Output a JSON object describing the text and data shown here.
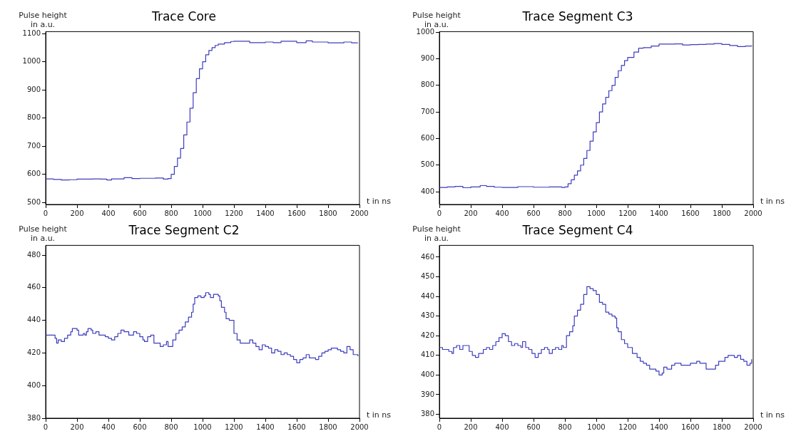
{
  "chart_data": [
    {
      "type": "step",
      "title": "Trace Core",
      "xlabel": "t in ns",
      "ylabel": "Pulse height in a.u.",
      "color": "#3c3cbe",
      "grid": false,
      "xlim": [
        0,
        2000
      ],
      "ylim": [
        493,
        1107
      ],
      "xticks": [
        0,
        200,
        400,
        600,
        800,
        1000,
        1200,
        1400,
        1600,
        1800,
        2000
      ],
      "yticks": [
        500,
        600,
        700,
        800,
        900,
        1000,
        1100
      ],
      "x": [
        0,
        50,
        100,
        150,
        200,
        300,
        350,
        390,
        420,
        500,
        550,
        600,
        700,
        750,
        780,
        800,
        820,
        840,
        860,
        880,
        900,
        920,
        940,
        960,
        980,
        1000,
        1020,
        1040,
        1060,
        1080,
        1100,
        1140,
        1180,
        1200,
        1300,
        1400,
        1450,
        1500,
        1600,
        1660,
        1700,
        1800,
        1900,
        1950,
        1990
      ],
      "values": [
        584,
        582,
        580,
        581,
        583,
        584,
        583,
        580,
        584,
        588,
        585,
        586,
        587,
        583,
        585,
        600,
        628,
        658,
        692,
        740,
        786,
        835,
        890,
        940,
        975,
        1000,
        1025,
        1040,
        1050,
        1058,
        1063,
        1068,
        1072,
        1073,
        1068,
        1070,
        1068,
        1073,
        1068,
        1074,
        1070,
        1067,
        1070,
        1067,
        1067
      ]
    },
    {
      "type": "step",
      "title": "Trace Segment C3",
      "xlabel": "t in ns",
      "ylabel": "Pulse height in a.u.",
      "color": "#3c3cbe",
      "grid": false,
      "xlim": [
        0,
        2000
      ],
      "ylim": [
        352,
        1002
      ],
      "xticks": [
        0,
        200,
        400,
        600,
        800,
        1000,
        1200,
        1400,
        1600,
        1800,
        2000
      ],
      "yticks": [
        400,
        500,
        600,
        700,
        800,
        900,
        1000
      ],
      "x": [
        0,
        50,
        100,
        150,
        200,
        260,
        300,
        350,
        400,
        500,
        600,
        700,
        780,
        800,
        820,
        840,
        860,
        880,
        900,
        920,
        940,
        960,
        980,
        1000,
        1020,
        1040,
        1060,
        1080,
        1100,
        1120,
        1140,
        1160,
        1180,
        1200,
        1240,
        1270,
        1300,
        1350,
        1400,
        1500,
        1550,
        1600,
        1650,
        1700,
        1750,
        1800,
        1850,
        1900,
        1950,
        1990
      ],
      "values": [
        416,
        418,
        420,
        415,
        418,
        423,
        420,
        417,
        416,
        419,
        417,
        418,
        416,
        418,
        430,
        445,
        462,
        478,
        500,
        525,
        555,
        590,
        625,
        660,
        700,
        730,
        755,
        780,
        800,
        830,
        855,
        875,
        893,
        905,
        925,
        940,
        942,
        948,
        955,
        956,
        952,
        953,
        954,
        955,
        957,
        954,
        950,
        946,
        948,
        950
      ]
    },
    {
      "type": "step",
      "title": "Trace Segment C2",
      "xlabel": "t in ns",
      "ylabel": "Pulse height in a.u.",
      "color": "#3c3cbe",
      "grid": false,
      "xlim": [
        0,
        2000
      ],
      "ylim": [
        380,
        486
      ],
      "xticks": [
        0,
        200,
        400,
        600,
        800,
        1000,
        1200,
        1400,
        1600,
        1800,
        2000
      ],
      "yticks": [
        380,
        400,
        420,
        440,
        460,
        480
      ],
      "x": [
        0,
        60,
        70,
        80,
        100,
        120,
        140,
        160,
        170,
        200,
        210,
        240,
        250,
        260,
        270,
        290,
        300,
        320,
        340,
        380,
        400,
        420,
        440,
        460,
        480,
        500,
        530,
        560,
        580,
        600,
        620,
        630,
        650,
        670,
        690,
        720,
        730,
        750,
        770,
        780,
        810,
        830,
        850,
        870,
        890,
        910,
        930,
        940,
        950,
        970,
        990,
        1010,
        1020,
        1040,
        1050,
        1070,
        1100,
        1110,
        1120,
        1140,
        1150,
        1170,
        1200,
        1220,
        1240,
        1280,
        1300,
        1320,
        1340,
        1360,
        1380,
        1400,
        1420,
        1440,
        1460,
        1480,
        1500,
        1520,
        1540,
        1560,
        1580,
        1600,
        1620,
        1640,
        1660,
        1680,
        1720,
        1740,
        1760,
        1780,
        1800,
        1820,
        1860,
        1880,
        1900,
        1920,
        1940,
        1960,
        1990
      ],
      "values": [
        431,
        429,
        426,
        428,
        427,
        429,
        431,
        433,
        435,
        434,
        431,
        432,
        431,
        433,
        435,
        434,
        432,
        433,
        431,
        430,
        429,
        428,
        430,
        432,
        434,
        433,
        431,
        433,
        432,
        430,
        428,
        427,
        430,
        431,
        426,
        426,
        424,
        425,
        427,
        424,
        428,
        432,
        434,
        436,
        439,
        442,
        445,
        450,
        454,
        455,
        454,
        455,
        457,
        456,
        454,
        456,
        455,
        452,
        448,
        445,
        441,
        440,
        432,
        428,
        426,
        426,
        428,
        426,
        424,
        422,
        425,
        424,
        423,
        420,
        422,
        421,
        419,
        420,
        419,
        418,
        416,
        414,
        416,
        417,
        419,
        417,
        416,
        418,
        420,
        421,
        422,
        423,
        422,
        421,
        420,
        424,
        422,
        419,
        418
      ]
    },
    {
      "type": "step",
      "title": "Trace Segment C4",
      "xlabel": "t in ns",
      "ylabel": "Pulse height in a.u.",
      "color": "#3c3cbe",
      "grid": false,
      "xlim": [
        0,
        2000
      ],
      "ylim": [
        378,
        466
      ],
      "xticks": [
        0,
        200,
        400,
        600,
        800,
        1000,
        1200,
        1400,
        1600,
        1800,
        2000
      ],
      "yticks": [
        380,
        390,
        400,
        410,
        420,
        430,
        440,
        450,
        460
      ],
      "x": [
        0,
        20,
        60,
        80,
        90,
        110,
        130,
        150,
        180,
        190,
        210,
        230,
        250,
        280,
        300,
        320,
        340,
        360,
        380,
        400,
        420,
        440,
        460,
        480,
        500,
        520,
        530,
        550,
        570,
        590,
        610,
        630,
        650,
        670,
        690,
        700,
        720,
        740,
        760,
        780,
        790,
        810,
        830,
        850,
        860,
        880,
        900,
        920,
        940,
        960,
        980,
        1000,
        1020,
        1040,
        1060,
        1080,
        1100,
        1120,
        1130,
        1140,
        1160,
        1180,
        1200,
        1230,
        1260,
        1280,
        1300,
        1320,
        1340,
        1380,
        1400,
        1420,
        1430,
        1450,
        1480,
        1500,
        1540,
        1600,
        1640,
        1660,
        1700,
        1740,
        1760,
        1780,
        1820,
        1840,
        1880,
        1900,
        1920,
        1940,
        1960,
        1980,
        1990
      ],
      "values": [
        414,
        413,
        412,
        411,
        414,
        415,
        413,
        415,
        415,
        412,
        410,
        409,
        411,
        413,
        414,
        413,
        415,
        417,
        419,
        421,
        420,
        417,
        415,
        416,
        415,
        414,
        417,
        414,
        413,
        411,
        409,
        411,
        413,
        414,
        413,
        411,
        413,
        414,
        413,
        415,
        414,
        420,
        422,
        425,
        430,
        433,
        436,
        441,
        445,
        444,
        443,
        441,
        437,
        436,
        432,
        431,
        430,
        429,
        424,
        422,
        418,
        416,
        414,
        411,
        409,
        407,
        406,
        405,
        403,
        402,
        400,
        401,
        404,
        403,
        405,
        406,
        405,
        406,
        407,
        406,
        403,
        403,
        405,
        407,
        409,
        410,
        409,
        410,
        408,
        407,
        405,
        406,
        408
      ]
    }
  ]
}
